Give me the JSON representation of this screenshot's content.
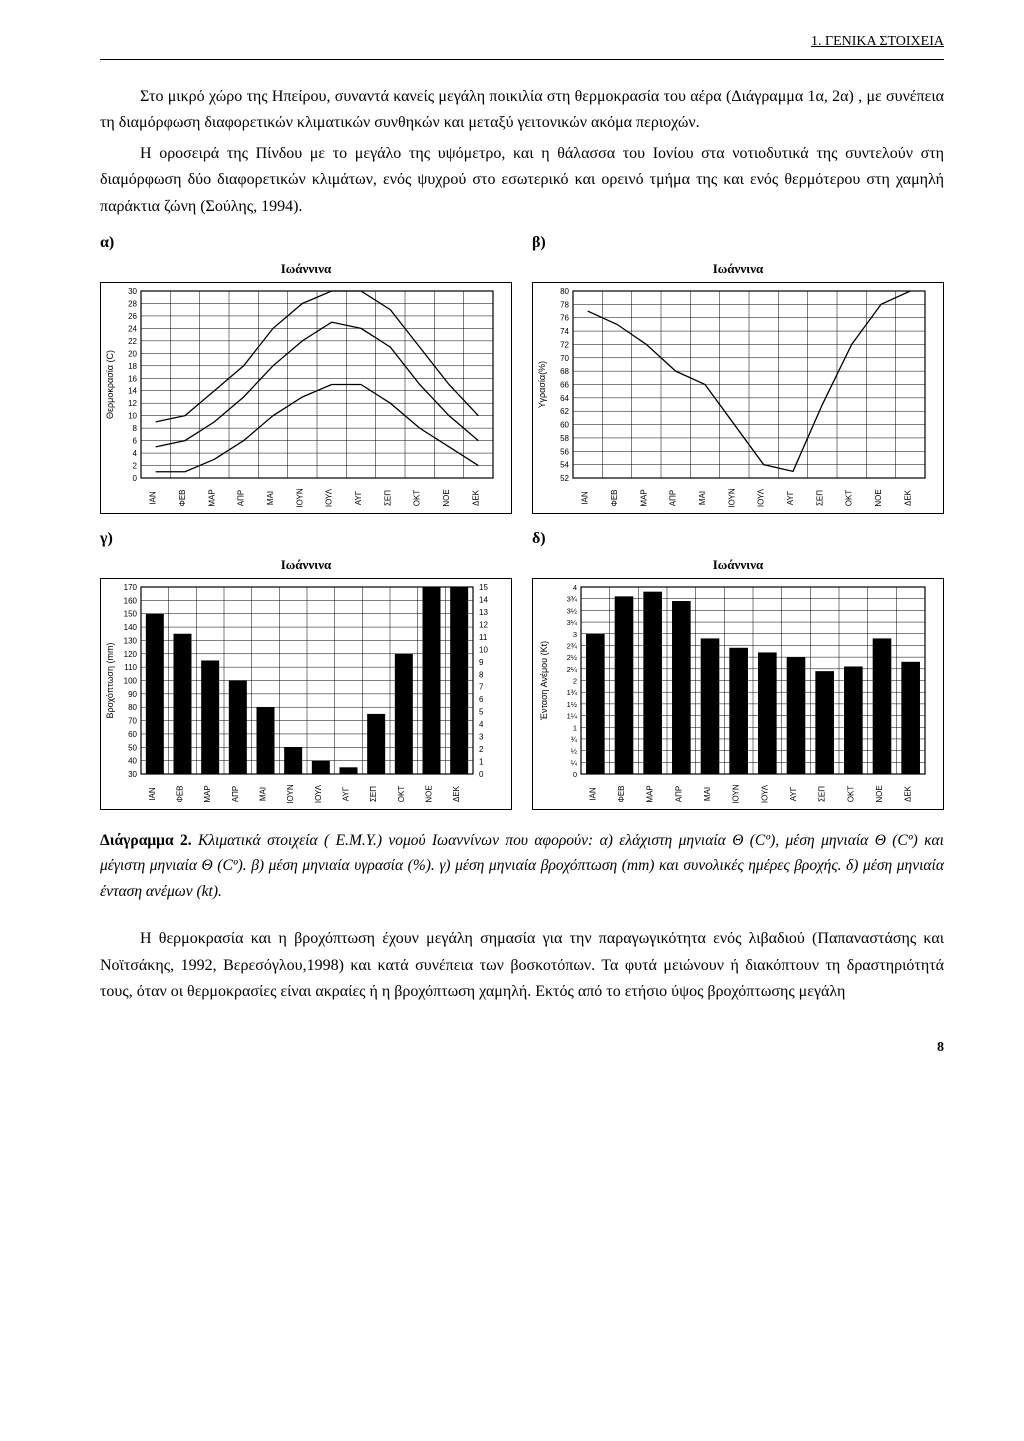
{
  "header": "1. ΓΕΝΙΚΑ ΣΤΟΙΧΕΙΑ",
  "para1": "Στο μικρό χώρο της Ηπείρου, συναντά κανείς μεγάλη ποικιλία στη θερμοκρασία του αέρα (Διάγραμμα 1α, 2α) , με συνέπεια τη διαμόρφωση διαφορετικών κλιματικών συνθηκών και μεταξύ γειτονικών ακόμα περιοχών.",
  "para2": "Η οροσειρά της Πίνδου με το μεγάλο της υψόμετρο, και η θάλασσα του Ιονίου στα νοτιοδυτικά της συντελούν στη διαμόρφωση δύο διαφορετικών κλιμάτων, ενός ψυχρού στο εσωτερικό και ορεινό τμήμα της και ενός θερμότερου στη χαμηλή παράκτια ζώνη (Σούλης, 1994).",
  "labels": {
    "a": "α)",
    "b": "β)",
    "c": "γ)",
    "d": "δ)"
  },
  "months": [
    "ΙΑΝ",
    "ΦΕΒ",
    "ΜΑΡ",
    "ΑΠΡ",
    "ΜΑΙ",
    "ΙΟΥΝ",
    "ΙΟΥΛ",
    "ΑΥΓ",
    "ΣΕΠ",
    "ΟΚΤ",
    "ΝΟΕ",
    "ΔΕΚ"
  ],
  "chart_a": {
    "title": "Ιωάννινα",
    "ylabel": "Θερμοκρασία (C)",
    "ymin": 0,
    "ymax": 30,
    "ystep": 2,
    "series_min": [
      1,
      1,
      3,
      6,
      10,
      13,
      15,
      15,
      12,
      8,
      5,
      2
    ],
    "series_mean": [
      5,
      6,
      9,
      13,
      18,
      22,
      25,
      24,
      21,
      15,
      10,
      6
    ],
    "series_max": [
      9,
      10,
      14,
      18,
      24,
      28,
      31,
      31,
      27,
      21,
      15,
      10
    ],
    "line_color": "#000000",
    "grid_color": "#000000",
    "bg": "#ffffff"
  },
  "chart_b": {
    "title": "Ιωάννινα",
    "ylabel": "Υγρασία(%)",
    "ymin": 52,
    "ymax": 80,
    "ystep": 2,
    "series": [
      77,
      75,
      72,
      68,
      66,
      60,
      54,
      53,
      63,
      72,
      78,
      80
    ],
    "line_color": "#000000",
    "grid_color": "#000000",
    "bg": "#ffffff"
  },
  "chart_c": {
    "title": "Ιωάννινα",
    "ylabel_left": "Βροχόπτωση (mm)",
    "ylabel_right_max": 15,
    "ymin": 30,
    "ymax": 170,
    "ystep": 10,
    "ymin_r": 0,
    "ymax_r": 15,
    "ystep_r": 1,
    "bars": [
      150,
      135,
      115,
      100,
      80,
      50,
      40,
      35,
      75,
      120,
      170,
      170
    ],
    "bar_color": "#000000",
    "grid_color": "#000000",
    "bg": "#ffffff"
  },
  "chart_d": {
    "title": "Ιωάννινα",
    "ylabel": "Ένταση Ανέμου (Kt)",
    "ymin": 0,
    "ymax": 4,
    "ystep": 0.25,
    "yticks": [
      "0",
      "¼",
      "½",
      "¾",
      "1",
      "1¼",
      "1½",
      "1¾",
      "2",
      "2¼",
      "2½",
      "2¾",
      "3",
      "3¼",
      "3½",
      "3¾",
      "4"
    ],
    "bars": [
      3.0,
      3.8,
      3.9,
      3.7,
      2.9,
      2.7,
      2.6,
      2.5,
      2.2,
      2.3,
      2.9,
      2.4
    ],
    "bar_color": "#000000",
    "grid_color": "#000000",
    "bg": "#ffffff"
  },
  "caption_lead": "Διάγραμμα 2.",
  "caption_body": " Κλιματικά στοιχεία ( Ε.Μ.Υ.) νομού Ιωαννίνων που αφορούν: α) ελάχιστη μηνιαία Θ (Cº), μέση μηνιαία Θ (Cº) και μέγιστη μηνιαία Θ (Cº). β) μέση μηνιαία υγρασία (%). γ) μέση μηνιαία βροχόπτωση (mm) και συνολικές ημέρες βροχής. δ) μέση μηνιαία ένταση ανέμων (kt).",
  "para3": "Η θερμοκρασία και η βροχόπτωση έχουν μεγάλη σημασία για την παραγωγικότητα ενός λιβαδιού (Παπαναστάσης και Νοϊτσάκης, 1992, Βερεσόγλου,1998) και κατά συνέπεια των βοσκοτόπων. Τα φυτά μειώνουν ή διακόπτουν τη δραστηριότητά τους, όταν οι θερμοκρασίες είναι ακραίες ή η βροχόπτωση χαμηλή. Εκτός από το ετήσιο ύψος βροχόπτωσης μεγάλη",
  "page_number": "8"
}
